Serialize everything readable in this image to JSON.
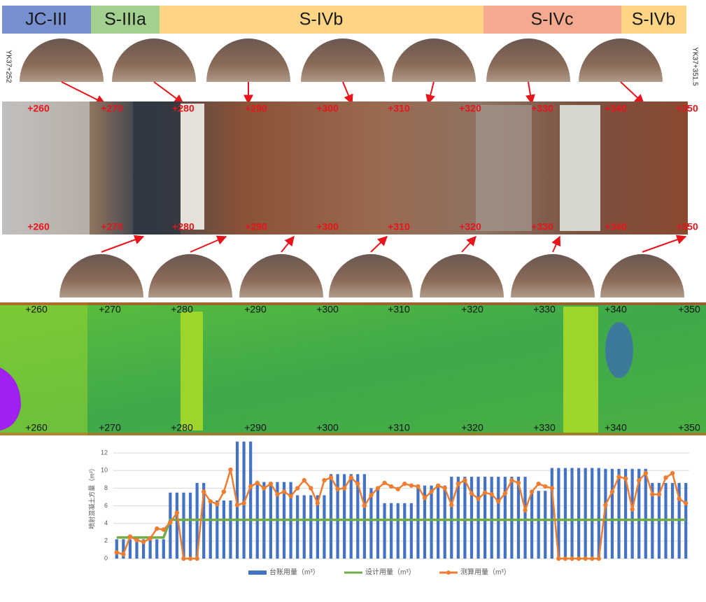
{
  "rock_classes": [
    "JC-III",
    "S-IIIa",
    "S-IVb",
    "S-IVc",
    "S-IVb"
  ],
  "chainage_start": "YK37+252",
  "chainage_end": "YK37+351.5",
  "stations": [
    "+260",
    "+270",
    "+280",
    "+290",
    "+300",
    "+310",
    "+320",
    "+330",
    "+340",
    "+350"
  ],
  "chart_data": {
    "type": "bar",
    "y_label": "喷射混凝土方量（m³）",
    "categories": [
      null,
      null,
      null,
      null,
      null,
      null,
      null,
      null,
      null,
      null,
      null,
      null,
      null,
      null,
      null,
      null,
      null,
      null,
      null,
      null,
      null,
      null,
      null,
      null,
      null,
      null,
      null,
      null,
      null,
      null,
      null,
      null,
      null,
      null,
      null,
      null,
      null,
      null,
      null,
      null,
      null,
      null,
      null,
      null,
      null,
      null,
      null,
      null,
      null,
      null,
      null,
      null,
      null,
      null,
      null,
      null,
      null,
      null,
      null,
      null,
      null,
      null,
      null,
      null,
      null,
      null,
      null,
      null,
      null,
      null,
      null,
      null,
      null,
      null,
      null,
      null,
      null,
      null,
      null,
      null,
      null,
      null,
      null,
      null,
      null,
      null
    ],
    "ylim": [
      0,
      14
    ],
    "yticks": [
      0,
      2,
      4,
      6,
      8,
      10,
      12
    ],
    "grid": true,
    "series": [
      {
        "name": "台账用量（m³）",
        "type": "bar",
        "color": "#4472c4",
        "values": [
          2.2,
          2.2,
          2.2,
          2.2,
          2.2,
          2.2,
          2.2,
          2.2,
          7.5,
          7.5,
          7.5,
          7.5,
          8.6,
          8.6,
          6.6,
          6.6,
          6.6,
          6.6,
          13.3,
          13.3,
          13.3,
          8.7,
          8.7,
          8.7,
          8.7,
          8.7,
          8.7,
          7.2,
          7.2,
          7.2,
          7.2,
          7.2,
          9.6,
          9.6,
          9.6,
          9.6,
          9.6,
          9.6,
          8.0,
          8.0,
          6.3,
          6.3,
          6.3,
          6.3,
          6.3,
          8.3,
          8.3,
          8.3,
          8.3,
          8.3,
          9.3,
          9.3,
          9.3,
          9.3,
          9.3,
          9.3,
          9.3,
          9.3,
          9.3,
          9.3,
          9.3,
          9.3,
          7.7,
          7.7,
          7.7,
          10.3,
          10.3,
          10.3,
          10.3,
          10.3,
          10.3,
          10.3,
          10.3,
          10.2,
          10.2,
          10.2,
          10.2,
          10.2,
          10.2,
          10.2,
          8.6,
          8.6,
          8.6,
          8.6,
          8.6,
          8.6
        ]
      },
      {
        "name": "设计用量（m³）",
        "type": "line",
        "color": "#70ad47",
        "values": [
          2.4,
          2.4,
          2.4,
          2.4,
          2.4,
          2.4,
          2.4,
          2.4,
          4.4,
          4.4,
          4.4,
          4.4,
          4.4,
          4.4,
          4.4,
          4.4,
          4.4,
          4.4,
          4.4,
          4.4,
          4.4,
          4.4,
          4.4,
          4.4,
          4.4,
          4.4,
          4.4,
          4.4,
          4.4,
          4.4,
          4.4,
          4.4,
          4.4,
          4.4,
          4.4,
          4.4,
          4.4,
          4.4,
          4.4,
          4.4,
          4.4,
          4.4,
          4.4,
          4.4,
          4.4,
          4.4,
          4.4,
          4.4,
          4.4,
          4.4,
          4.4,
          4.4,
          4.4,
          4.4,
          4.4,
          4.4,
          4.4,
          4.4,
          4.4,
          4.4,
          4.4,
          4.4,
          4.4,
          4.4,
          4.4,
          4.4,
          4.4,
          4.4,
          4.4,
          4.4,
          4.4,
          4.4,
          4.4,
          4.4,
          4.4,
          4.4,
          4.4,
          4.4,
          4.4,
          4.4,
          4.4,
          4.4,
          4.4,
          4.4,
          4.4,
          4.4
        ]
      },
      {
        "name": "测算用量（m³）",
        "type": "line-marker",
        "color": "#ed7d31",
        "values": [
          0.7,
          0.5,
          2.5,
          2.1,
          1.9,
          2.3,
          3.4,
          3.3,
          4.1,
          5.2,
          0,
          0,
          0,
          7.6,
          6.5,
          6.2,
          7.6,
          10.1,
          6.1,
          6.3,
          8.2,
          8.6,
          8.0,
          8.5,
          7.3,
          7.6,
          7.1,
          8.0,
          8.9,
          8.0,
          6.3,
          8.9,
          9.2,
          7.9,
          8.0,
          9.2,
          8.5,
          6.0,
          7.2,
          8.0,
          8.6,
          8.2,
          7.9,
          8.5,
          8.3,
          8.2,
          6.9,
          7.6,
          8.3,
          8.0,
          6.1,
          8.5,
          8.9,
          7.4,
          6.8,
          7.5,
          7.3,
          6.5,
          7.4,
          8.9,
          8.6,
          5.5,
          7.6,
          8.5,
          8.2,
          8.0,
          0,
          0,
          0,
          0,
          0,
          0,
          0,
          6.1,
          7.6,
          9.3,
          9.1,
          5.6,
          8.9,
          9.7,
          7.3,
          7.3,
          9.2,
          9.7,
          6.8,
          6.3
        ]
      }
    ]
  }
}
